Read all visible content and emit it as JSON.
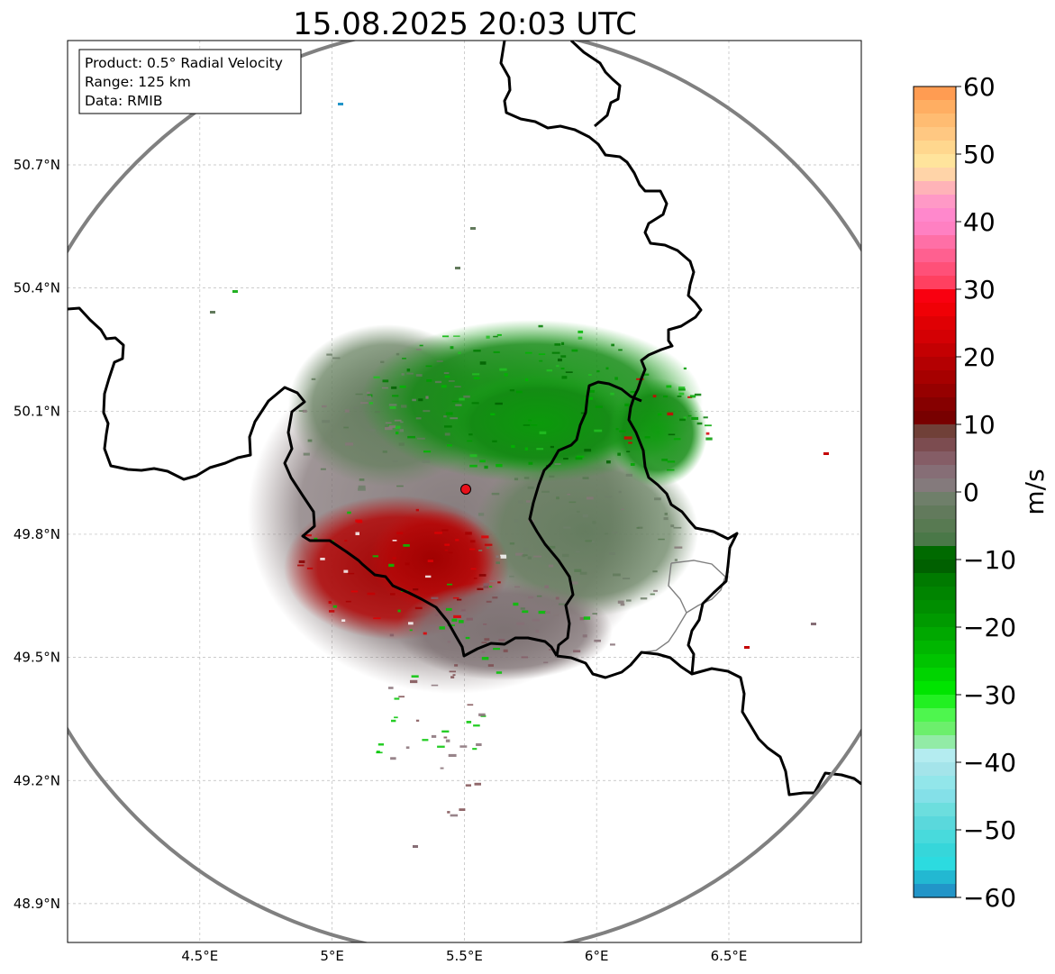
{
  "title": "15.08.2025 20:03 UTC",
  "info_box": {
    "product": "Product: 0.5° Radial Velocity",
    "range": "Range: 125 km",
    "data": "Data: RMIB"
  },
  "map": {
    "lon_range": [
      4.0,
      7.0
    ],
    "lat_range": [
      48.8,
      50.98
    ],
    "lon_ticks": [
      {
        "value": 4.5,
        "label": "4.5°E"
      },
      {
        "value": 5.0,
        "label": "5°E"
      },
      {
        "value": 5.5,
        "label": "5.5°E"
      },
      {
        "value": 6.0,
        "label": "6°E"
      },
      {
        "value": 6.5,
        "label": "6.5°E"
      }
    ],
    "lat_ticks": [
      {
        "value": 50.7,
        "label": "50.7°N"
      },
      {
        "value": 50.4,
        "label": "50.4°N"
      },
      {
        "value": 50.1,
        "label": "50.1°N"
      },
      {
        "value": 49.8,
        "label": "49.8°N"
      },
      {
        "value": 49.5,
        "label": "49.5°N"
      },
      {
        "value": 49.2,
        "label": "49.2°N"
      },
      {
        "value": 48.9,
        "label": "48.9°N"
      }
    ],
    "radar_site": {
      "lon": 5.505,
      "lat": 49.914,
      "color": "#e8101a"
    },
    "range_ring_km": 125,
    "gridlines": true,
    "ring_color": "#808080",
    "border_color": "#000000"
  },
  "colorbar": {
    "label": "m/s",
    "min": -60,
    "max": 60,
    "ticks": [
      {
        "value": 60,
        "label": "60"
      },
      {
        "value": 50,
        "label": "50"
      },
      {
        "value": 40,
        "label": "40"
      },
      {
        "value": 30,
        "label": "30"
      },
      {
        "value": 20,
        "label": "20"
      },
      {
        "value": 10,
        "label": "10"
      },
      {
        "value": 0,
        "label": "0"
      },
      {
        "value": -10,
        "label": "−10"
      },
      {
        "value": -20,
        "label": "−20"
      },
      {
        "value": -30,
        "label": "−30"
      },
      {
        "value": -40,
        "label": "−40"
      },
      {
        "value": -50,
        "label": "−50"
      },
      {
        "value": -60,
        "label": "−60"
      }
    ],
    "colors_top_to_bottom": [
      "#ff9c52",
      "#ffae62",
      "#ffbc72",
      "#ffc882",
      "#ffd78e",
      "#ffe49c",
      "#ffd4a8",
      "#ffb3b8",
      "#ff99c6",
      "#ff88cc",
      "#ff80c2",
      "#ff6fa6",
      "#ff6090",
      "#ff5078",
      "#ff4060",
      "#f90010",
      "#f00006",
      "#e00004",
      "#d40004",
      "#c40002",
      "#b40002",
      "#a60000",
      "#960000",
      "#860000",
      "#780000",
      "#704038",
      "#7c4c50",
      "#855d66",
      "#866e76",
      "#847a7c",
      "#6f7f6a",
      "#627a5c",
      "#587a52",
      "#4a7848",
      "#006a00",
      "#006000",
      "#007a00",
      "#008400",
      "#008e00",
      "#009a00",
      "#00a800",
      "#00b600",
      "#00c400",
      "#00d400",
      "#00e400",
      "#22f022",
      "#4ef64e",
      "#6cef6c",
      "#92eba6",
      "#b4ecf0",
      "#a4e4ea",
      "#92e6ea",
      "#84e0e8",
      "#6cdede",
      "#5ad8dc",
      "#48dadc",
      "#36d6da",
      "#2cdbe0",
      "#22b8d2",
      "#2295c8"
    ]
  }
}
